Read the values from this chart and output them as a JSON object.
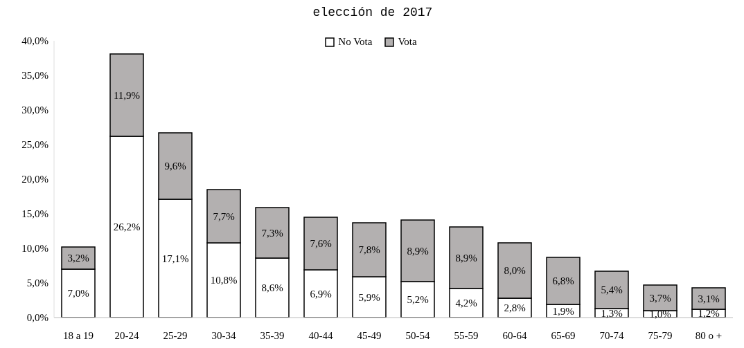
{
  "chart_data": {
    "type": "bar",
    "title": "elección de 2017",
    "stacked": true,
    "legend": "top",
    "grid": false,
    "categories": [
      "18 a 19",
      "20-24",
      "25-29",
      "30-34",
      "35-39",
      "40-44",
      "45-49",
      "50-54",
      "55-59",
      "60-64",
      "65-69",
      "70-74",
      "75-79",
      "80 o +"
    ],
    "series": [
      {
        "name": "No Vota",
        "color": "#ffffff",
        "values": [
          7.0,
          26.2,
          17.1,
          10.8,
          8.6,
          6.9,
          5.9,
          5.2,
          4.2,
          2.8,
          1.9,
          1.3,
          1.0,
          1.2
        ],
        "value_labels": [
          "7,0%",
          "26,2%",
          "17,1%",
          "10,8%",
          "8,6%",
          "6,9%",
          "5,9%",
          "5,2%",
          "4,2%",
          "2,8%",
          "1,9%",
          "1,3%",
          "1,0%",
          "1,2%"
        ]
      },
      {
        "name": "Vota",
        "color": "#b3b0b0",
        "values": [
          3.2,
          11.9,
          9.6,
          7.7,
          7.3,
          7.6,
          7.8,
          8.9,
          8.9,
          8.0,
          6.8,
          5.4,
          3.7,
          3.1
        ],
        "value_labels": [
          "3,2%",
          "11,9%",
          "9,6%",
          "7,7%",
          "7,3%",
          "7,6%",
          "7,8%",
          "8,9%",
          "8,9%",
          "8,0%",
          "6,8%",
          "5,4%",
          "3,7%",
          "3,1%"
        ]
      }
    ],
    "ylim": [
      0,
      40
    ],
    "yticks": [
      {
        "value": 0,
        "label": "0,0%"
      },
      {
        "value": 5,
        "label": "5,0%"
      },
      {
        "value": 10,
        "label": "10,0%"
      },
      {
        "value": 15,
        "label": "15,0%"
      },
      {
        "value": 20,
        "label": "20,0%"
      },
      {
        "value": 25,
        "label": "25,0%"
      },
      {
        "value": 30,
        "label": "30,0%"
      },
      {
        "value": 35,
        "label": "35,0%"
      },
      {
        "value": 40,
        "label": "40,0%"
      }
    ]
  }
}
